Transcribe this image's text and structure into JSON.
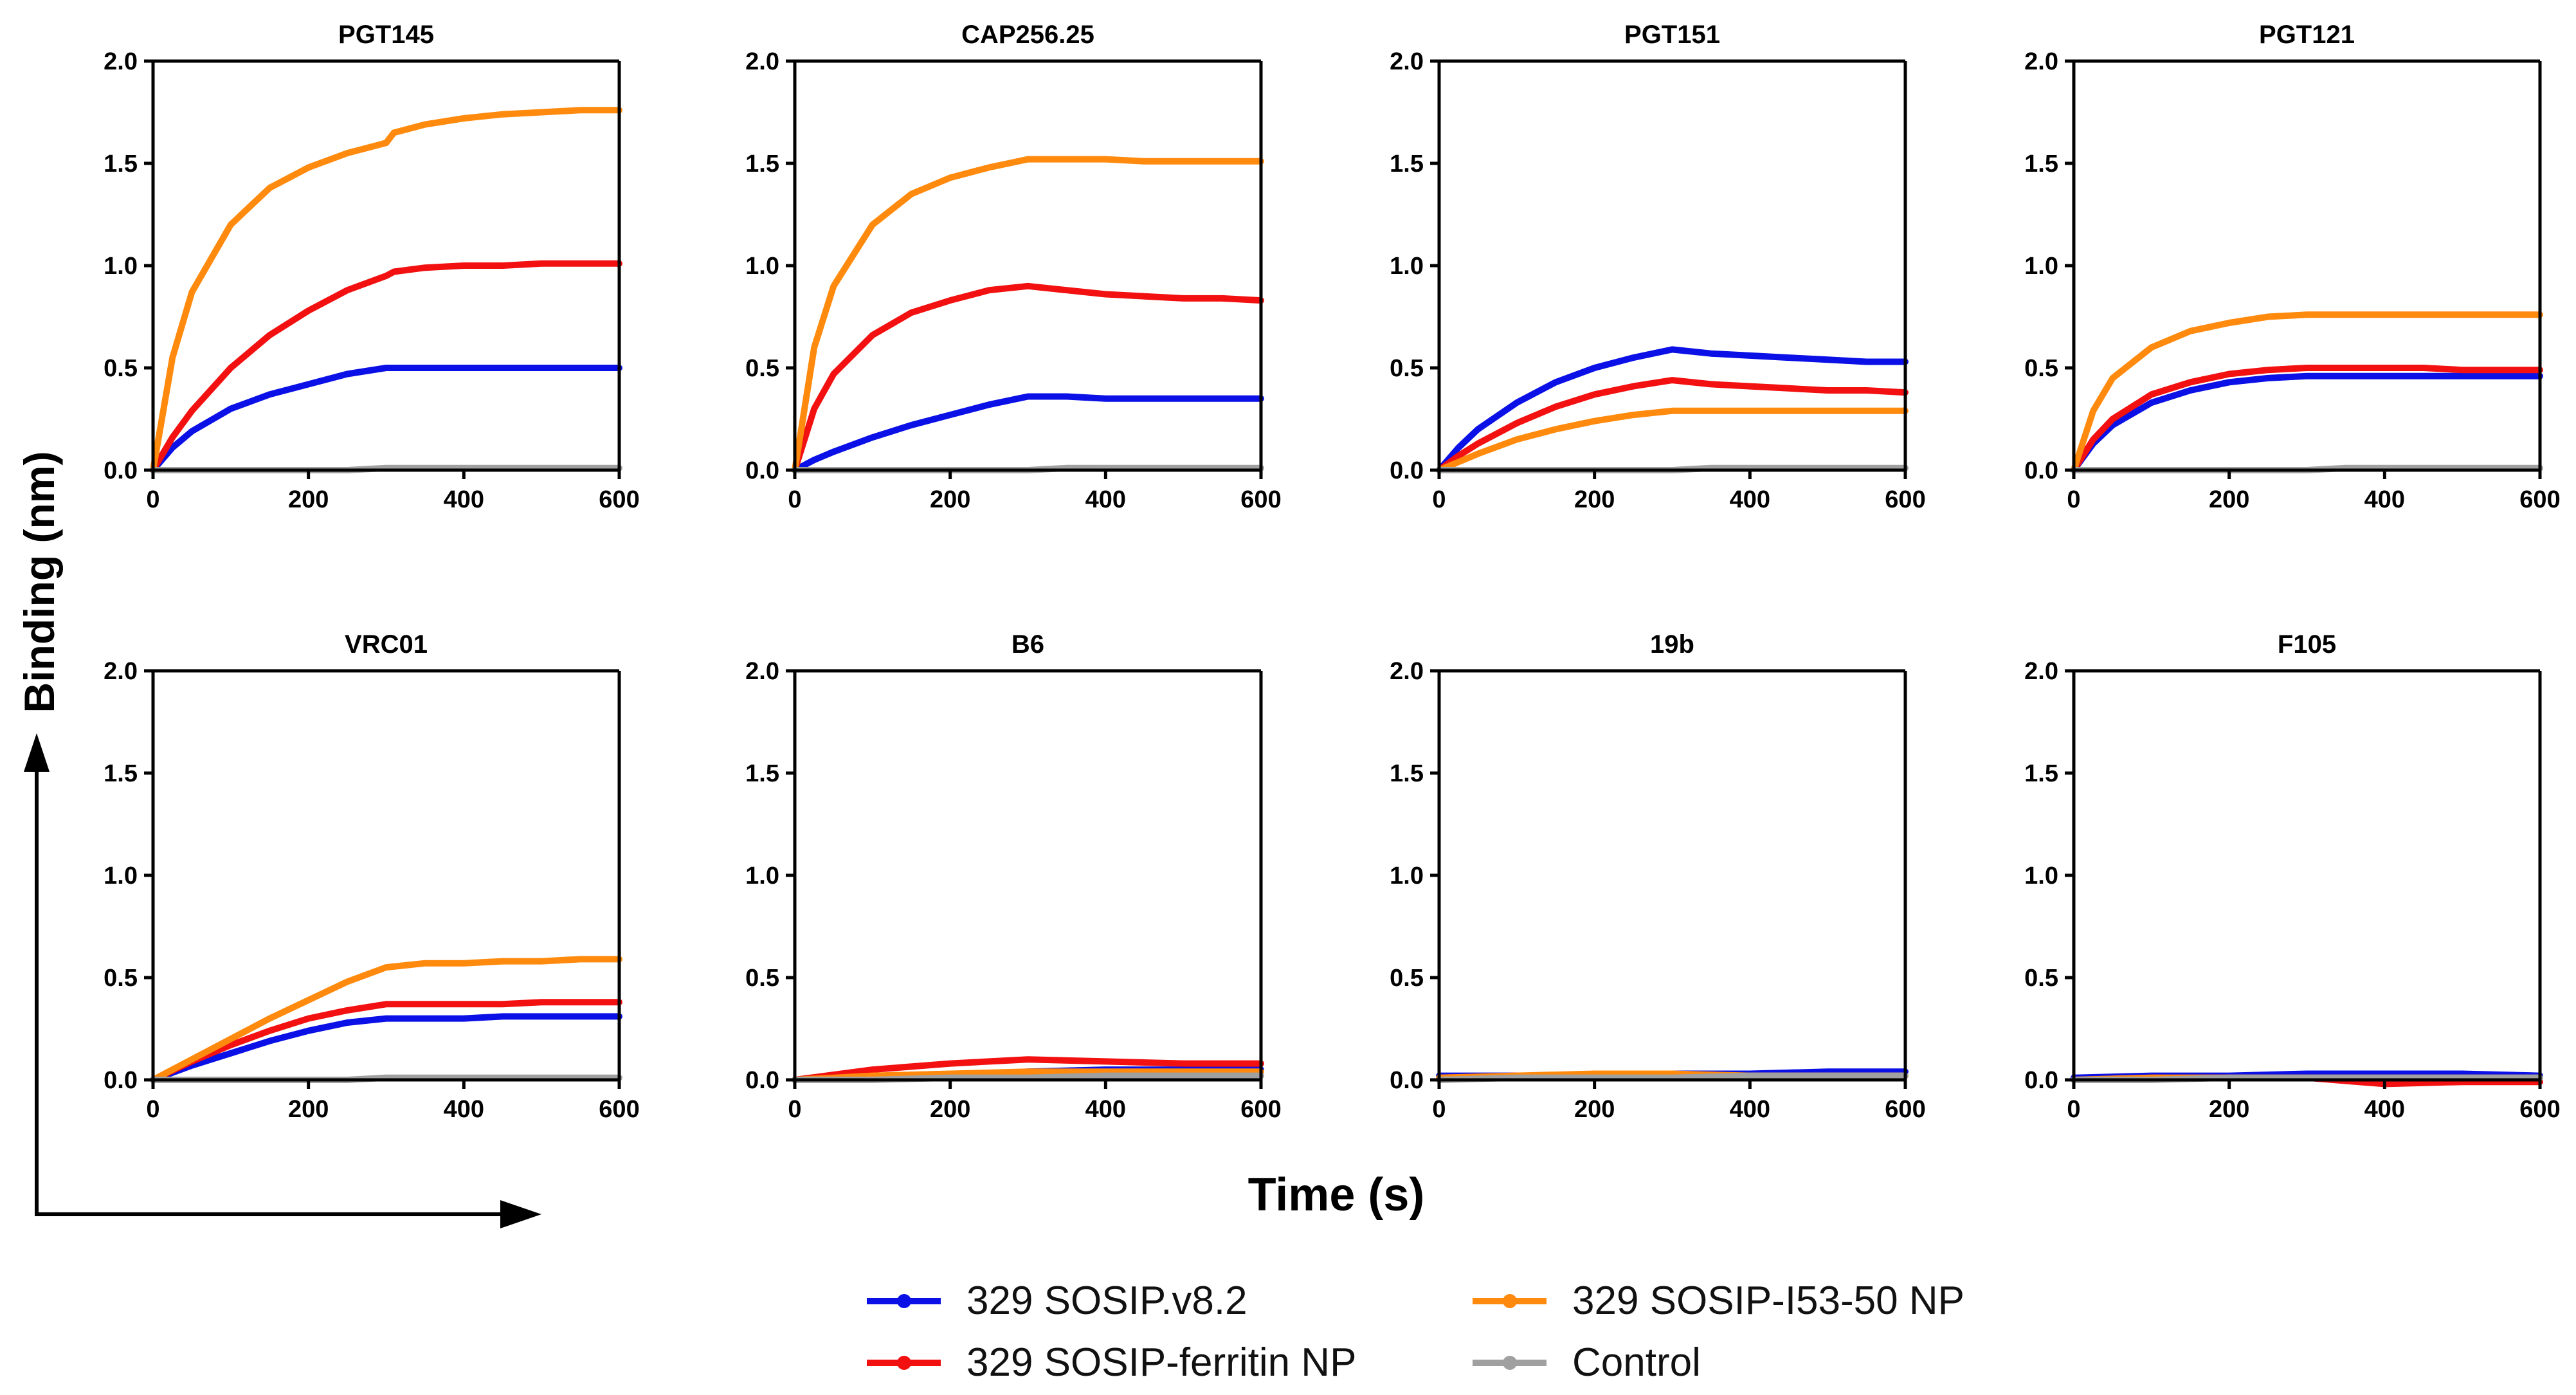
{
  "y_axis_label": "Binding (nm)",
  "x_axis_label": "Time (s)",
  "colors": {
    "329 SOSIP.v8.2": "#0a10e6",
    "329 SOSIP-ferritin NP": "#f21010",
    "329 SOSIP-I53-50 NP": "#ff8a0d",
    "Control": "#a0a0a0"
  },
  "legend": {
    "items": [
      "329 SOSIP.v8.2",
      "329 SOSIP-ferritin NP",
      "329 SOSIP-I53-50 NP",
      "Control"
    ]
  },
  "chart_data": [
    {
      "type": "line",
      "title": "PGT145",
      "xlim": [
        0,
        600
      ],
      "ylim": [
        0,
        2.0
      ],
      "x_ticks": [
        0,
        200,
        400,
        600
      ],
      "y_ticks": [
        "0.0",
        "0.5",
        "1.0",
        "1.5",
        "2.0"
      ],
      "x": [
        0,
        25,
        50,
        100,
        150,
        200,
        250,
        300,
        310,
        350,
        400,
        450,
        500,
        550,
        600
      ],
      "series": [
        {
          "name": "329 SOSIP.v8.2",
          "values": [
            0,
            0.11,
            0.19,
            0.3,
            0.37,
            0.42,
            0.47,
            0.5,
            0.5,
            0.5,
            0.5,
            0.5,
            0.5,
            0.5,
            0.5
          ]
        },
        {
          "name": "329 SOSIP-ferritin NP",
          "values": [
            0,
            0.16,
            0.29,
            0.5,
            0.66,
            0.78,
            0.88,
            0.95,
            0.97,
            0.99,
            1.0,
            1.0,
            1.01,
            1.01,
            1.01
          ]
        },
        {
          "name": "329 SOSIP-I53-50 NP",
          "values": [
            0,
            0.55,
            0.87,
            1.2,
            1.38,
            1.48,
            1.55,
            1.6,
            1.65,
            1.69,
            1.72,
            1.74,
            1.75,
            1.76,
            1.76
          ]
        },
        {
          "name": "Control",
          "values": [
            0,
            0,
            0,
            0,
            0,
            0,
            0,
            0.01,
            0.01,
            0.01,
            0.01,
            0.01,
            0.01,
            0.01,
            0.01
          ]
        }
      ]
    },
    {
      "type": "line",
      "title": "CAP256.25",
      "xlim": [
        0,
        600
      ],
      "ylim": [
        0,
        2.0
      ],
      "x_ticks": [
        0,
        200,
        400,
        600
      ],
      "y_ticks": [
        "0.0",
        "0.5",
        "1.0",
        "1.5",
        "2.0"
      ],
      "x": [
        0,
        25,
        50,
        100,
        150,
        200,
        250,
        300,
        350,
        400,
        450,
        500,
        550,
        600
      ],
      "series": [
        {
          "name": "329 SOSIP.v8.2",
          "values": [
            0,
            0.05,
            0.09,
            0.16,
            0.22,
            0.27,
            0.32,
            0.36,
            0.36,
            0.35,
            0.35,
            0.35,
            0.35,
            0.35
          ]
        },
        {
          "name": "329 SOSIP-ferritin NP",
          "values": [
            0,
            0.3,
            0.47,
            0.66,
            0.77,
            0.83,
            0.88,
            0.9,
            0.88,
            0.86,
            0.85,
            0.84,
            0.84,
            0.83
          ]
        },
        {
          "name": "329 SOSIP-I53-50 NP",
          "values": [
            0,
            0.6,
            0.9,
            1.2,
            1.35,
            1.43,
            1.48,
            1.52,
            1.52,
            1.52,
            1.51,
            1.51,
            1.51,
            1.51
          ]
        },
        {
          "name": "Control",
          "values": [
            0,
            0,
            0,
            0,
            0,
            0,
            0,
            0,
            0.01,
            0.01,
            0.01,
            0.01,
            0.01,
            0.01
          ]
        }
      ]
    },
    {
      "type": "line",
      "title": "PGT151",
      "xlim": [
        0,
        600
      ],
      "ylim": [
        0,
        2.0
      ],
      "x_ticks": [
        0,
        200,
        400,
        600
      ],
      "y_ticks": [
        "0.0",
        "0.5",
        "1.0",
        "1.5",
        "2.0"
      ],
      "x": [
        0,
        25,
        50,
        100,
        150,
        200,
        250,
        300,
        350,
        400,
        450,
        500,
        550,
        600
      ],
      "series": [
        {
          "name": "329 SOSIP.v8.2",
          "values": [
            0,
            0.11,
            0.2,
            0.33,
            0.43,
            0.5,
            0.55,
            0.59,
            0.57,
            0.56,
            0.55,
            0.54,
            0.53,
            0.53
          ]
        },
        {
          "name": "329 SOSIP-ferritin NP",
          "values": [
            0,
            0.07,
            0.13,
            0.23,
            0.31,
            0.37,
            0.41,
            0.44,
            0.42,
            0.41,
            0.4,
            0.39,
            0.39,
            0.38
          ]
        },
        {
          "name": "329 SOSIP-I53-50 NP",
          "values": [
            0,
            0.04,
            0.08,
            0.15,
            0.2,
            0.24,
            0.27,
            0.29,
            0.29,
            0.29,
            0.29,
            0.29,
            0.29,
            0.29
          ]
        },
        {
          "name": "Control",
          "values": [
            0,
            0,
            0,
            0,
            0,
            0,
            0,
            0,
            0.01,
            0.01,
            0.01,
            0.01,
            0.01,
            0.01
          ]
        }
      ]
    },
    {
      "type": "line",
      "title": "PGT121",
      "xlim": [
        0,
        600
      ],
      "ylim": [
        0,
        2.0
      ],
      "x_ticks": [
        0,
        200,
        400,
        600
      ],
      "y_ticks": [
        "0.0",
        "0.5",
        "1.0",
        "1.5",
        "2.0"
      ],
      "x": [
        0,
        25,
        50,
        100,
        150,
        200,
        250,
        300,
        350,
        400,
        450,
        500,
        550,
        600
      ],
      "series": [
        {
          "name": "329 SOSIP.v8.2",
          "values": [
            0,
            0.13,
            0.22,
            0.33,
            0.39,
            0.43,
            0.45,
            0.46,
            0.46,
            0.46,
            0.46,
            0.46,
            0.46,
            0.46
          ]
        },
        {
          "name": "329 SOSIP-ferritin NP",
          "values": [
            0,
            0.15,
            0.25,
            0.37,
            0.43,
            0.47,
            0.49,
            0.5,
            0.5,
            0.5,
            0.5,
            0.49,
            0.49,
            0.49
          ]
        },
        {
          "name": "329 SOSIP-I53-50 NP",
          "values": [
            0,
            0.29,
            0.45,
            0.6,
            0.68,
            0.72,
            0.75,
            0.76,
            0.76,
            0.76,
            0.76,
            0.76,
            0.76,
            0.76
          ]
        },
        {
          "name": "Control",
          "values": [
            0,
            0,
            0,
            0,
            0,
            0,
            0,
            0,
            0.01,
            0.01,
            0.01,
            0.01,
            0.01,
            0.01
          ]
        }
      ]
    },
    {
      "type": "line",
      "title": "VRC01",
      "xlim": [
        0,
        600
      ],
      "ylim": [
        0,
        2.0
      ],
      "x_ticks": [
        0,
        200,
        400,
        600
      ],
      "y_ticks": [
        "0.0",
        "0.5",
        "1.0",
        "1.5",
        "2.0"
      ],
      "x": [
        0,
        50,
        100,
        150,
        200,
        250,
        300,
        350,
        400,
        450,
        500,
        550,
        600
      ],
      "series": [
        {
          "name": "329 SOSIP.v8.2",
          "values": [
            0,
            0.07,
            0.13,
            0.19,
            0.24,
            0.28,
            0.3,
            0.3,
            0.3,
            0.31,
            0.31,
            0.31,
            0.31
          ]
        },
        {
          "name": "329 SOSIP-ferritin NP",
          "values": [
            0,
            0.09,
            0.17,
            0.24,
            0.3,
            0.34,
            0.37,
            0.37,
            0.37,
            0.37,
            0.38,
            0.38,
            0.38
          ]
        },
        {
          "name": "329 SOSIP-I53-50 NP",
          "values": [
            0,
            0.1,
            0.2,
            0.3,
            0.39,
            0.48,
            0.55,
            0.57,
            0.57,
            0.58,
            0.58,
            0.59,
            0.59
          ]
        },
        {
          "name": "Control",
          "values": [
            0,
            0,
            0,
            0,
            0,
            0,
            0.01,
            0.01,
            0.01,
            0.01,
            0.01,
            0.01,
            0.01
          ]
        }
      ]
    },
    {
      "type": "line",
      "title": "B6",
      "xlim": [
        0,
        600
      ],
      "ylim": [
        0,
        2.0
      ],
      "x_ticks": [
        0,
        200,
        400,
        600
      ],
      "y_ticks": [
        "0.0",
        "0.5",
        "1.0",
        "1.5",
        "2.0"
      ],
      "x": [
        0,
        100,
        200,
        300,
        400,
        500,
        600
      ],
      "series": [
        {
          "name": "329 SOSIP.v8.2",
          "values": [
            0,
            0.01,
            0.02,
            0.04,
            0.05,
            0.05,
            0.05
          ]
        },
        {
          "name": "329 SOSIP-ferritin NP",
          "values": [
            0,
            0.05,
            0.08,
            0.1,
            0.09,
            0.08,
            0.08
          ]
        },
        {
          "name": "329 SOSIP-I53-50 NP",
          "values": [
            0,
            0.02,
            0.03,
            0.04,
            0.04,
            0.04,
            0.04
          ]
        },
        {
          "name": "Control",
          "values": [
            0,
            0,
            0.01,
            0.01,
            0.02,
            0.02,
            0.02
          ]
        }
      ]
    },
    {
      "type": "line",
      "title": "19b",
      "xlim": [
        0,
        600
      ],
      "ylim": [
        0,
        2.0
      ],
      "x_ticks": [
        0,
        200,
        400,
        600
      ],
      "y_ticks": [
        "0.0",
        "0.5",
        "1.0",
        "1.5",
        "2.0"
      ],
      "x": [
        0,
        100,
        200,
        300,
        400,
        500,
        600
      ],
      "series": [
        {
          "name": "329 SOSIP.v8.2",
          "values": [
            0.02,
            0.02,
            0.02,
            0.03,
            0.03,
            0.04,
            0.04
          ]
        },
        {
          "name": "329 SOSIP-ferritin NP",
          "values": [
            0.01,
            0.02,
            0.02,
            0.02,
            0.02,
            0.02,
            0.02
          ]
        },
        {
          "name": "329 SOSIP-I53-50 NP",
          "values": [
            0.01,
            0.02,
            0.03,
            0.03,
            0.02,
            0.02,
            0.02
          ]
        },
        {
          "name": "Control",
          "values": [
            0,
            0.01,
            0.01,
            0.01,
            0.02,
            0.02,
            0.02
          ]
        }
      ]
    },
    {
      "type": "line",
      "title": "F105",
      "xlim": [
        0,
        600
      ],
      "ylim": [
        0,
        2.0
      ],
      "x_ticks": [
        0,
        200,
        400,
        600
      ],
      "y_ticks": [
        "0.0",
        "0.5",
        "1.0",
        "1.5",
        "2.0"
      ],
      "x": [
        0,
        100,
        200,
        300,
        400,
        500,
        600
      ],
      "series": [
        {
          "name": "329 SOSIP.v8.2",
          "values": [
            0.01,
            0.02,
            0.02,
            0.03,
            0.03,
            0.03,
            0.02
          ]
        },
        {
          "name": "329 SOSIP-ferritin NP",
          "values": [
            0,
            0.01,
            0.01,
            0.01,
            -0.02,
            -0.01,
            -0.01
          ]
        },
        {
          "name": "329 SOSIP-I53-50 NP",
          "values": [
            0,
            0.01,
            0.01,
            0.01,
            0.01,
            0.01,
            0.01
          ]
        },
        {
          "name": "Control",
          "values": [
            0,
            0,
            0.01,
            0.01,
            0.01,
            0.01,
            0.01
          ]
        }
      ]
    }
  ]
}
